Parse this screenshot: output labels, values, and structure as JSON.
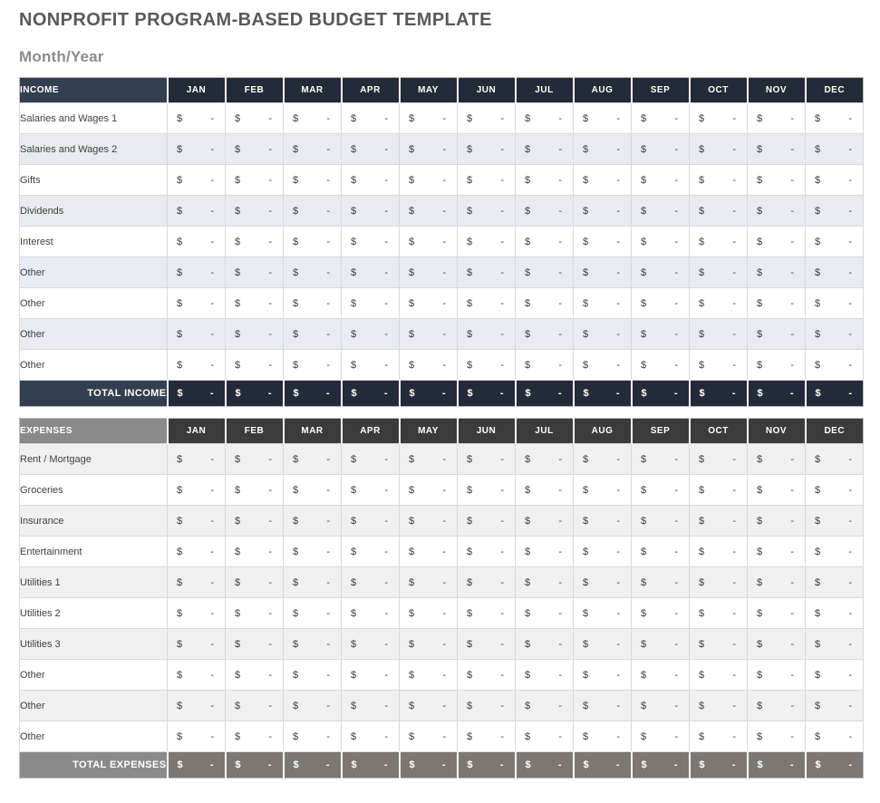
{
  "page": {
    "title": "NONPROFIT PROGRAM-BASED BUDGET TEMPLATE",
    "subtitle": "Month/Year"
  },
  "months": [
    "JAN",
    "FEB",
    "MAR",
    "APR",
    "MAY",
    "JUN",
    "JUL",
    "AUG",
    "SEP",
    "OCT",
    "NOV",
    "DEC"
  ],
  "cell": {
    "currency": "$",
    "empty": "-"
  },
  "income": {
    "header_label": "INCOME",
    "rows": [
      "Salaries and Wages 1",
      "Salaries and Wages 2",
      "Gifts",
      "Dividends",
      "Interest",
      "Other",
      "Other",
      "Other",
      "Other"
    ],
    "total_label": "TOTAL INCOME"
  },
  "expenses": {
    "header_label": "EXPENSES",
    "rows": [
      "Rent / Mortgage",
      "Groceries",
      "Insurance",
      "Entertainment",
      "Utilities 1",
      "Utilities 2",
      "Utilities 3",
      "Other",
      "Other",
      "Other"
    ],
    "total_label": "TOTAL EXPENSES"
  },
  "colors": {
    "title_text": "#595959",
    "subtitle_text": "#8C8C8C",
    "income_label_header_bg": "#333F50",
    "income_month_header_bg": "#232B38",
    "income_alt_row_bg": "#E9EBF1",
    "income_total_label_bg": "#333F50",
    "income_total_value_bg": "#232B38",
    "expenses_label_header_bg": "#8A8A8A",
    "expenses_month_header_bg": "#3B3B3B",
    "expenses_alt_row_bg": "#F0F0F0",
    "expenses_total_label_bg": "#8A8A8A",
    "expenses_total_value_bg": "#7C7772"
  }
}
